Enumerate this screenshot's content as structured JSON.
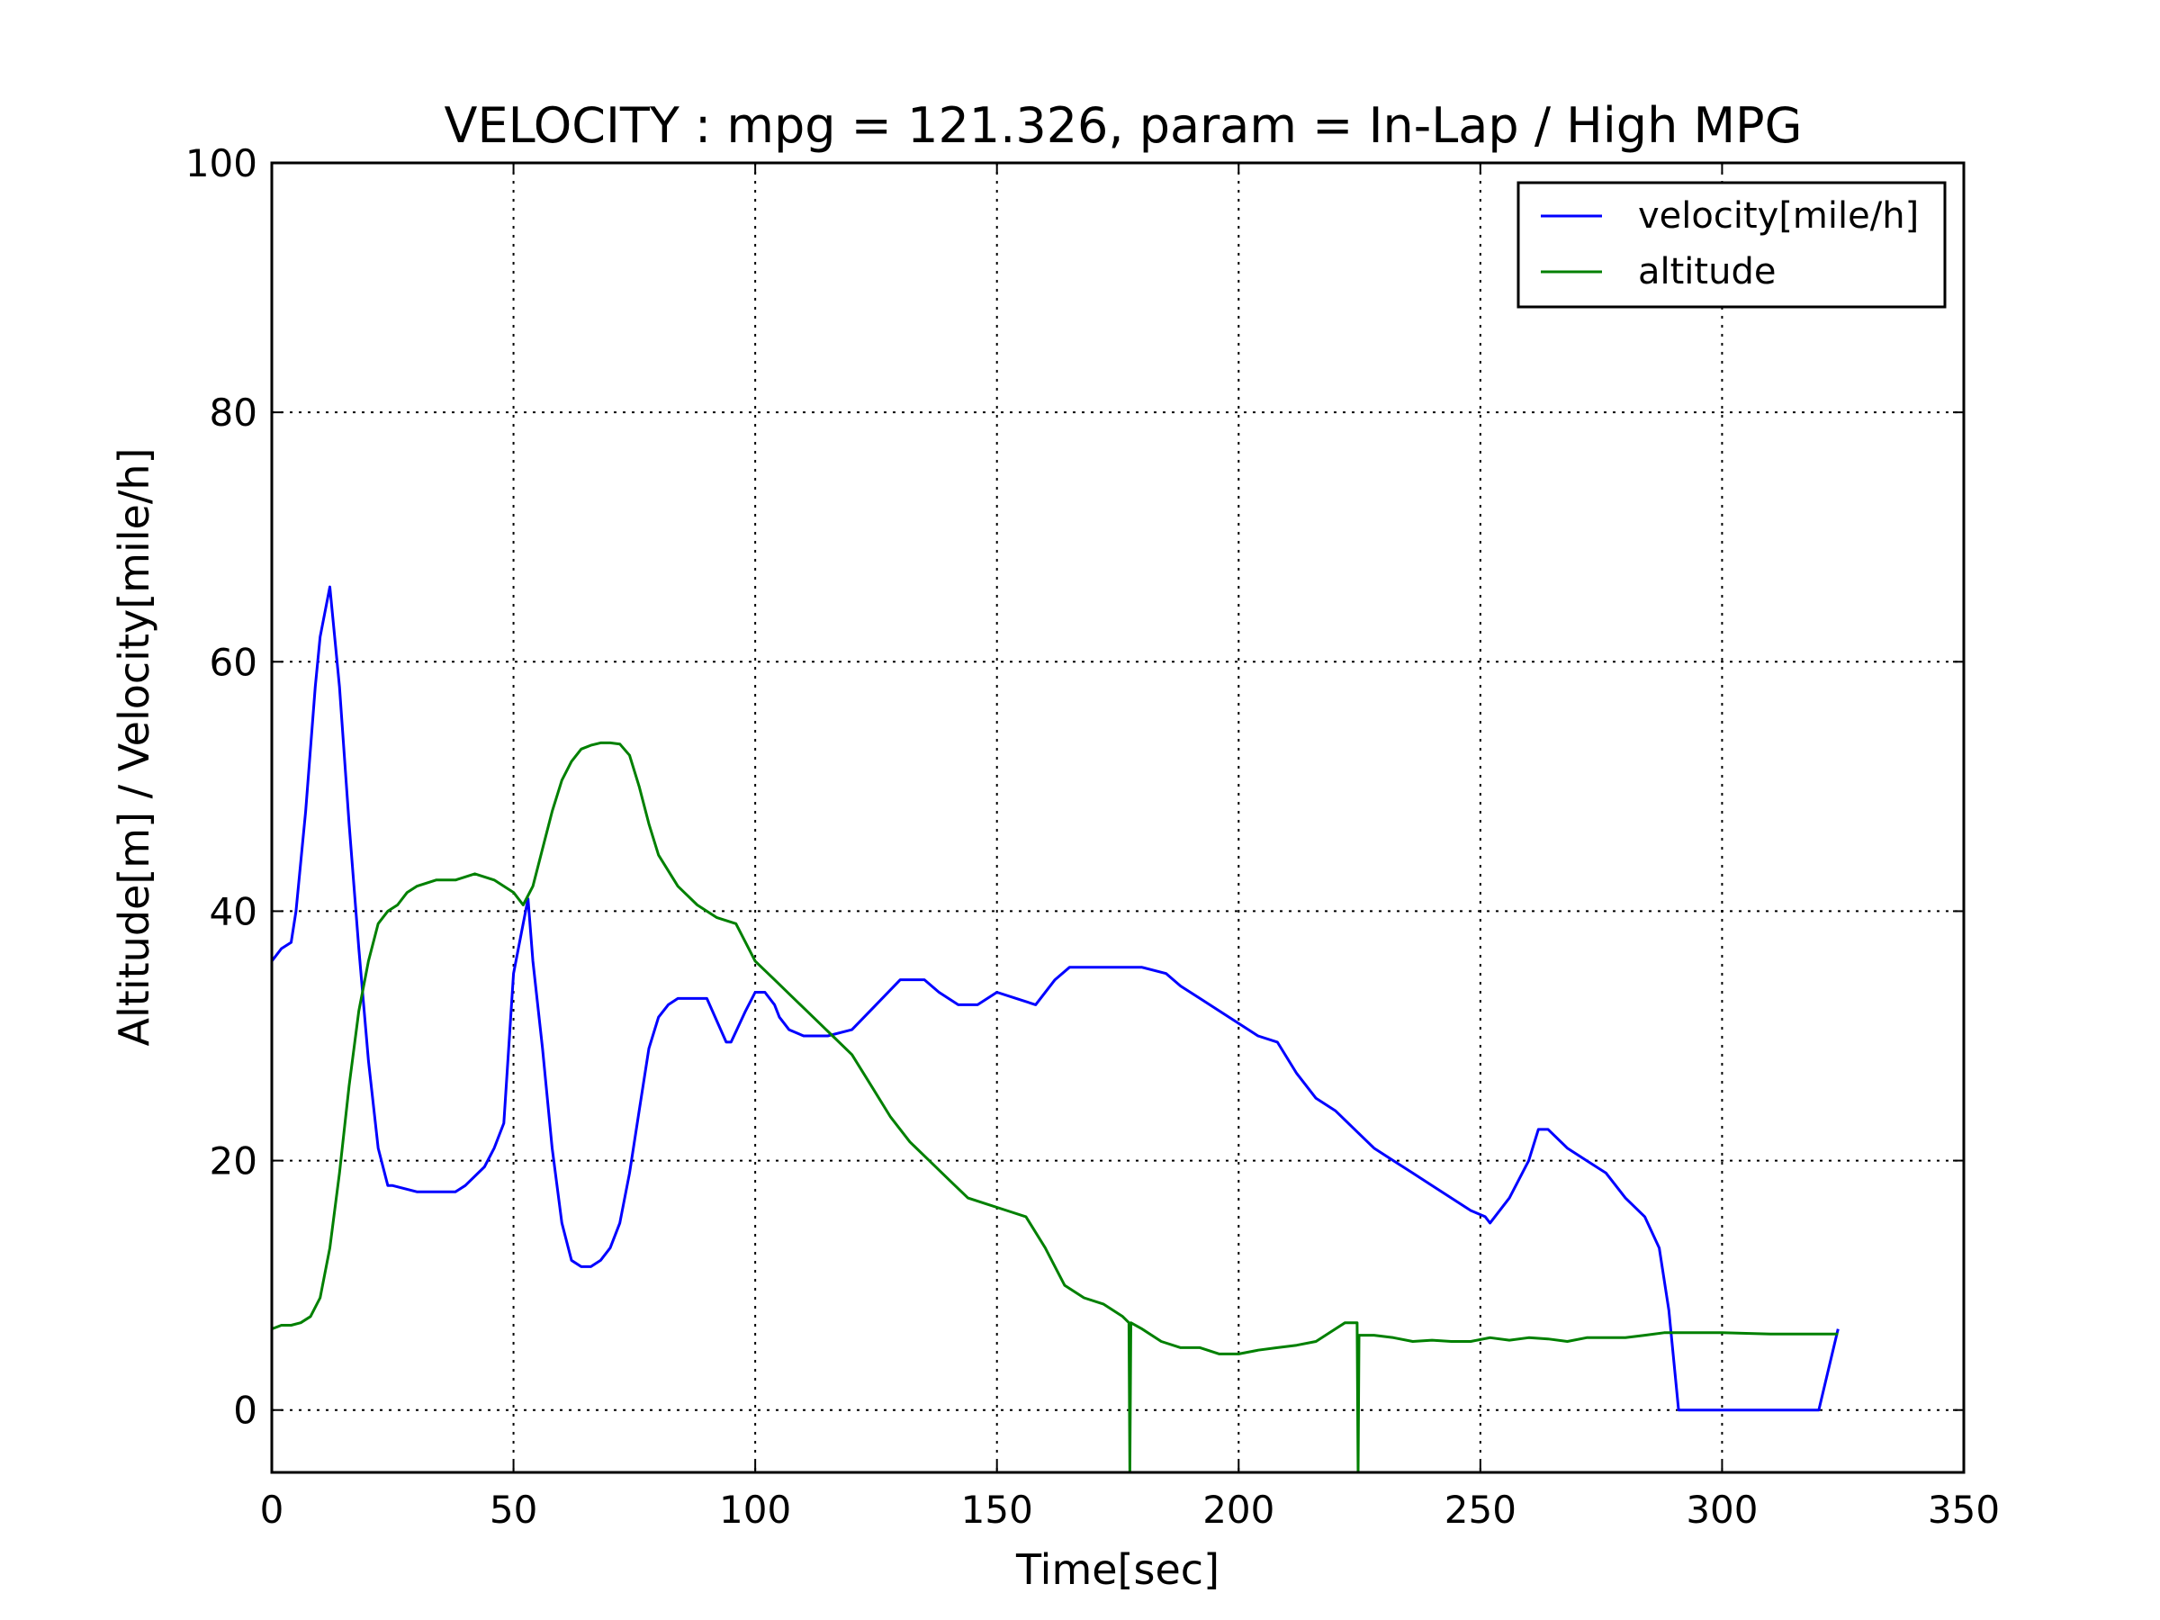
{
  "chart_data": {
    "type": "line",
    "title": "VELOCITY : mpg = 121.326, param = In-Lap / High MPG",
    "xlabel": "Time[sec]",
    "ylabel": "Altitude[m] / Velocity[mile/h]",
    "xlim": [
      0,
      350
    ],
    "ylim": [
      -5,
      100
    ],
    "xticks": [
      0,
      50,
      100,
      150,
      200,
      250,
      300,
      350
    ],
    "yticks": [
      0,
      20,
      40,
      60,
      80,
      100
    ],
    "grid": true,
    "legend_position": "top-right",
    "series": [
      {
        "name": "velocity[mile/h]",
        "color": "#0000ff",
        "x": [
          0,
          2,
          4,
          5,
          7,
          9,
          10,
          12,
          14,
          16,
          18,
          20,
          22,
          24,
          25,
          30,
          33,
          38,
          40,
          44,
          46,
          48,
          50,
          52,
          53,
          54,
          56,
          58,
          60,
          62,
          64,
          66,
          68,
          70,
          72,
          74,
          76,
          78,
          80,
          82,
          84,
          86,
          88,
          90,
          94,
          95,
          98,
          100,
          102,
          104,
          105,
          107,
          110,
          115,
          120,
          125,
          130,
          135,
          138,
          142,
          146,
          150,
          154,
          158,
          162,
          165,
          170,
          175,
          180,
          185,
          188,
          192,
          196,
          200,
          204,
          208,
          212,
          216,
          220,
          224,
          228,
          232,
          236,
          240,
          244,
          248,
          251,
          252,
          256,
          260,
          262,
          264,
          268,
          272,
          276,
          280,
          284,
          287,
          289,
          291,
          300,
          310,
          320,
          324
        ],
        "y": [
          36,
          37,
          37.5,
          40,
          48,
          58,
          62,
          66,
          58,
          47,
          37,
          28,
          21,
          18,
          18,
          17.5,
          17.5,
          17.5,
          18,
          19.5,
          21,
          23,
          35,
          39,
          41,
          36,
          29,
          21,
          15,
          12,
          11.5,
          11.5,
          12,
          13,
          15,
          19,
          24,
          29,
          31.5,
          32.5,
          33,
          33,
          33,
          33,
          29.5,
          29.5,
          32,
          33.5,
          33.5,
          32.5,
          31.5,
          30.5,
          30,
          30,
          30.5,
          32.5,
          34.5,
          34.5,
          33.5,
          32.5,
          32.5,
          33.5,
          33,
          32.5,
          34.5,
          35.5,
          35.5,
          35.5,
          35.5,
          35,
          34,
          33,
          32,
          31,
          30,
          29.5,
          27,
          25,
          24,
          22.5,
          21,
          20,
          19,
          18,
          17,
          16,
          15.5,
          15,
          17,
          20,
          22.5,
          22.5,
          21,
          20,
          19,
          17,
          15.5,
          13,
          8,
          0,
          0,
          0,
          0,
          6.5
        ]
      },
      {
        "name": "altitude",
        "color": "#008000",
        "x": [
          0,
          2,
          4,
          6,
          8,
          10,
          12,
          14,
          16,
          18,
          20,
          22,
          24,
          26,
          28,
          30,
          34,
          38,
          42,
          46,
          50,
          52,
          54,
          56,
          58,
          60,
          62,
          64,
          66,
          68,
          70,
          72,
          74,
          76,
          78,
          80,
          84,
          88,
          92,
          96,
          100,
          104,
          108,
          112,
          116,
          120,
          124,
          128,
          132,
          136,
          140,
          144,
          148,
          152,
          156,
          160,
          164,
          168,
          172,
          176,
          177.3,
          177.5,
          177.7,
          180,
          184,
          188,
          192,
          196,
          200,
          204,
          208,
          212,
          216,
          220,
          222,
          224.5,
          224.7,
          224.9,
          228,
          232,
          236,
          240,
          244,
          248,
          252,
          256,
          260,
          264,
          268,
          272,
          276,
          280,
          284,
          288,
          300,
          310,
          320,
          324
        ],
        "y": [
          6.5,
          6.8,
          6.8,
          7,
          7.5,
          9,
          13,
          19,
          26,
          32,
          36,
          39,
          40,
          40.5,
          41.5,
          42,
          42.5,
          42.5,
          43,
          42.5,
          41.5,
          40.5,
          42,
          45,
          48,
          50.5,
          52,
          53,
          53.3,
          53.5,
          53.5,
          53.4,
          52.5,
          50,
          47,
          44.5,
          42,
          40.5,
          39.5,
          39,
          36,
          34.5,
          33,
          31.5,
          30,
          28.5,
          26,
          23.5,
          21.5,
          20,
          18.5,
          17,
          16.5,
          16,
          15.5,
          13,
          10,
          9,
          8.5,
          7.5,
          7,
          -5,
          7,
          6.5,
          5.5,
          5,
          5,
          4.5,
          4.5,
          4.8,
          5,
          5.2,
          5.5,
          6.5,
          7,
          7,
          -5,
          6,
          6,
          5.8,
          5.5,
          5.6,
          5.5,
          5.5,
          5.8,
          5.6,
          5.8,
          5.7,
          5.5,
          5.8,
          5.8,
          5.8,
          6,
          6.2,
          6.2,
          6.1,
          6.1,
          6.1
        ]
      }
    ]
  }
}
